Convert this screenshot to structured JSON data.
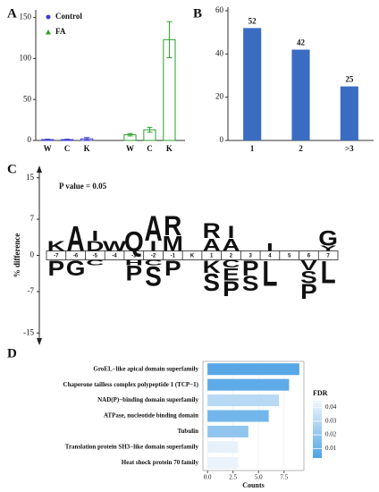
{
  "chart_data": [
    {
      "panel": "A",
      "type": "bar",
      "categories": [
        "W",
        "C",
        "K",
        "W",
        "C",
        "K"
      ],
      "series": [
        {
          "name": "Control",
          "color": "#3b3bd0",
          "values": [
            1,
            1,
            2,
            null,
            null,
            null
          ],
          "errors": [
            0.5,
            0.5,
            1.5,
            null,
            null,
            null
          ]
        },
        {
          "name": "FA",
          "color": "#2ca02c",
          "values": [
            null,
            null,
            null,
            7,
            13,
            123
          ],
          "errors": [
            null,
            null,
            null,
            1.5,
            3,
            22
          ]
        }
      ],
      "ylim": [
        0,
        155
      ],
      "yticks": [
        0,
        50,
        100,
        150
      ],
      "legend": "upper left"
    },
    {
      "panel": "B",
      "type": "bar",
      "categories": [
        "1",
        "2",
        ">3"
      ],
      "values": [
        52,
        42,
        25
      ],
      "color": "#3a6cc2",
      "ylim": [
        0,
        60
      ],
      "yticks": [
        0,
        20,
        40,
        60
      ],
      "data_labels": true
    },
    {
      "panel": "C",
      "type": "logo",
      "annotation": "P value = 0.05",
      "ylabel": "% difference",
      "ylim": [
        -16,
        16
      ],
      "yticks": [
        15,
        7,
        0,
        -7,
        -15
      ],
      "positions": [
        "-7",
        "-6",
        "-5",
        "-4",
        "-3",
        "-2",
        "-1",
        "K",
        "1",
        "2",
        "3",
        "4",
        "5",
        "6",
        "7"
      ],
      "letters": [
        {
          "position": "-7",
          "letter": "K",
          "value": 2,
          "color": "#2e6db4"
        },
        {
          "position": "-7",
          "letter": "P",
          "value": -3,
          "color": "#c0282d"
        },
        {
          "position": "-6",
          "letter": "A",
          "value": 5,
          "color": "#5aab3a"
        },
        {
          "position": "-6",
          "letter": "G",
          "value": -3,
          "color": "#2e6db4"
        },
        {
          "position": "-5",
          "letter": "D",
          "value": 2,
          "color": "#c0282d"
        },
        {
          "position": "-5",
          "letter": "I",
          "value": 2,
          "color": "#111111"
        },
        {
          "position": "-5",
          "letter": "C",
          "value": -1,
          "color": "#111111"
        },
        {
          "position": "-4",
          "letter": "W",
          "value": 2,
          "color": "#2e6db4"
        },
        {
          "position": "-3",
          "letter": "Q",
          "value": 4,
          "color": "#c0282d"
        },
        {
          "position": "-3",
          "letter": "H",
          "value": -1,
          "color": "#111111"
        },
        {
          "position": "-3",
          "letter": "P",
          "value": -3,
          "color": "#c0282d"
        },
        {
          "position": "-2",
          "letter": "I",
          "value": 2,
          "color": "#111111"
        },
        {
          "position": "-2",
          "letter": "A",
          "value": 5,
          "color": "#5aab3a"
        },
        {
          "position": "-2",
          "letter": "C",
          "value": -1,
          "color": "#111111"
        },
        {
          "position": "-2",
          "letter": "S",
          "value": -4,
          "color": "#5aab3a"
        },
        {
          "position": "-1",
          "letter": "M",
          "value": 3,
          "color": "#c0282d"
        },
        {
          "position": "-1",
          "letter": "R",
          "value": 4,
          "color": "#111111"
        },
        {
          "position": "-1",
          "letter": "P",
          "value": -3,
          "color": "#c0282d"
        },
        {
          "position": "1",
          "letter": "A",
          "value": 2.5,
          "color": "#5aab3a"
        },
        {
          "position": "1",
          "letter": "R",
          "value": 3,
          "color": "#111111"
        },
        {
          "position": "1",
          "letter": "K",
          "value": -2.5,
          "color": "#2e6db4"
        },
        {
          "position": "1",
          "letter": "S",
          "value": -3.5,
          "color": "#5aab3a"
        },
        {
          "position": "2",
          "letter": "A",
          "value": 2.5,
          "color": "#5aab3a"
        },
        {
          "position": "2",
          "letter": "I",
          "value": 2.5,
          "color": "#111111"
        },
        {
          "position": "2",
          "letter": "C",
          "value": -1.5,
          "color": "#111111"
        },
        {
          "position": "2",
          "letter": "E",
          "value": -2.5,
          "color": "#2e6db4"
        },
        {
          "position": "2",
          "letter": "P",
          "value": -3,
          "color": "#c0282d"
        },
        {
          "position": "3",
          "letter": "P",
          "value": -3,
          "color": "#c0282d"
        },
        {
          "position": "3",
          "letter": "S",
          "value": -3,
          "color": "#5aab3a"
        },
        {
          "position": "4",
          "letter": "I",
          "value": 1.5,
          "color": "#111111"
        },
        {
          "position": "4",
          "letter": "L",
          "value": -5,
          "color": "#2e6db4"
        },
        {
          "position": "6",
          "letter": "V",
          "value": -2,
          "color": "#c21fc2"
        },
        {
          "position": "6",
          "letter": "S",
          "value": -2.5,
          "color": "#5aab3a"
        },
        {
          "position": "6",
          "letter": "P",
          "value": -3,
          "color": "#c0282d"
        },
        {
          "position": "7",
          "letter": "Y",
          "value": 1,
          "color": "#c0282d"
        },
        {
          "position": "7",
          "letter": "G",
          "value": 3,
          "color": "#2e6db4"
        },
        {
          "position": "7",
          "letter": "L",
          "value": -4.5,
          "color": "#2e6db4"
        }
      ]
    },
    {
      "panel": "D",
      "type": "hbar",
      "categories": [
        "GroEL−like apical domain superfamily",
        "Chaperone tailless complex polypeptide 1 (TCP−1)",
        "NAD(P)−binding domain superfamily",
        "ATPase, nucleotide binding domain",
        "Tubulin",
        "Translation protein SH3−like domain superfamily",
        "Heat shock protein 70 family"
      ],
      "values": [
        9,
        8,
        7,
        6,
        4,
        3,
        3
      ],
      "fdr": [
        0.005,
        0.007,
        0.03,
        0.012,
        0.02,
        0.042,
        0.043
      ],
      "xlim": [
        -0.45,
        9.45
      ],
      "xticks": [
        {
          "value": 0,
          "label": "0.0"
        },
        {
          "value": 2.5,
          "label": "2.5"
        },
        {
          "value": 5,
          "label": "5.0"
        },
        {
          "value": 7.5,
          "label": "7.5"
        }
      ],
      "xlabel": "Counts",
      "grid": true,
      "colorbar": {
        "title": "FDR",
        "lim": [
          0.003,
          0.045
        ],
        "ticks": [
          0.01,
          0.02,
          0.03,
          0.04
        ],
        "low_color": "#4fa3e6",
        "high_color": "#f2f7fc"
      }
    }
  ]
}
